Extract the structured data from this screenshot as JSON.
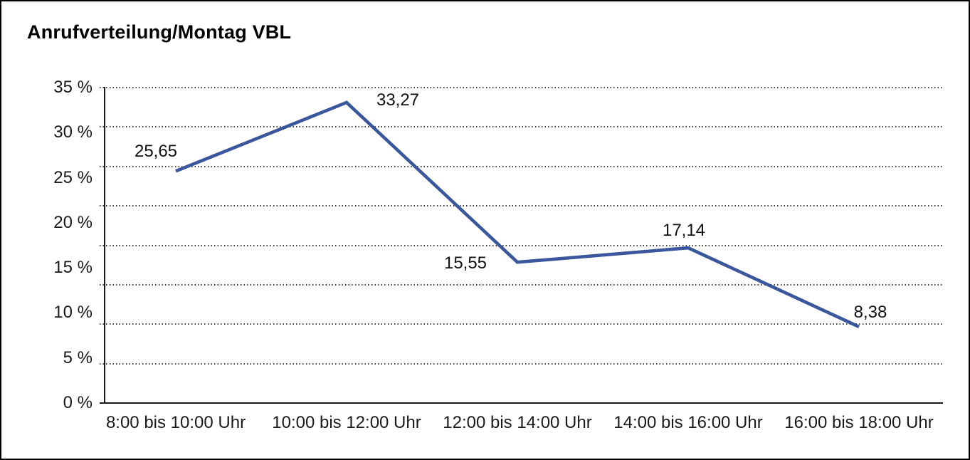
{
  "chart_data": {
    "type": "line",
    "title": "Anrufverteilung/Montag VBL",
    "categories": [
      "8:00 bis 10:00 Uhr",
      "10:00 bis 12:00 Uhr",
      "12:00 bis 14:00 Uhr",
      "14:00 bis 16:00 Uhr",
      "16:00 bis 18:00 Uhr"
    ],
    "series": [
      {
        "values": [
          25.65,
          33.27,
          15.55,
          17.14,
          8.38
        ],
        "point_labels": [
          "25,65",
          "33,27",
          "15,55",
          "17,14",
          "8,38"
        ],
        "color": "#3A579E"
      }
    ],
    "xlabel": "",
    "ylabel": "",
    "ylim": [
      0,
      35
    ],
    "ytick_labels": [
      "35 %",
      "30 %",
      "25 %",
      "20 %",
      "15 %",
      "10 %",
      "5 %",
      "0 %"
    ],
    "grid": "horizontal-dotted",
    "legend": "none",
    "point_markers": false,
    "axis_color": "#1a1a1a",
    "text_color": "#1a1a1a",
    "background_color": "#ffffff",
    "border_color": "#000000"
  }
}
